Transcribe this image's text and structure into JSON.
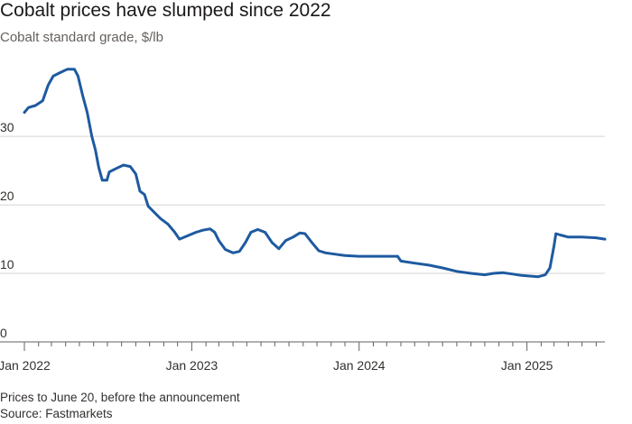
{
  "title": "Cobalt prices have slumped since 2022",
  "subtitle": "Cobalt standard grade, $/lb",
  "note": "Prices to June 20, before the announcement",
  "source": "Source: Fastmarkets",
  "colors": {
    "line": "#1e5aa0",
    "grid": "#d7d3cf",
    "axis": "#66605c",
    "text": "#33302e"
  },
  "chart_data": {
    "type": "line",
    "title": "Cobalt prices have slumped since 2022",
    "ylabel": "Cobalt standard grade, $/lb",
    "xlim": [
      "2022-01-01",
      "2025-06-20"
    ],
    "ylim": [
      0,
      42
    ],
    "yticks": [
      0,
      10,
      20,
      30
    ],
    "xticks": [
      {
        "date": "2022-01-01",
        "label": "Jan 2022"
      },
      {
        "date": "2023-01-01",
        "label": "Jan 2023"
      },
      {
        "date": "2024-01-01",
        "label": "Jan 2024"
      },
      {
        "date": "2025-01-01",
        "label": "Jan 2025"
      }
    ],
    "grid": true,
    "series": [
      {
        "points": [
          [
            "2022-01-01",
            33.5
          ],
          [
            "2022-01-10",
            34.2
          ],
          [
            "2022-01-25",
            34.5
          ],
          [
            "2022-02-10",
            35.2
          ],
          [
            "2022-02-22",
            37.5
          ],
          [
            "2022-03-05",
            38.8
          ],
          [
            "2022-03-20",
            39.3
          ],
          [
            "2022-04-05",
            39.8
          ],
          [
            "2022-04-20",
            39.8
          ],
          [
            "2022-04-28",
            38.8
          ],
          [
            "2022-05-08",
            36.0
          ],
          [
            "2022-05-18",
            33.5
          ],
          [
            "2022-05-28",
            30.0
          ],
          [
            "2022-06-05",
            28.0
          ],
          [
            "2022-06-12",
            25.5
          ],
          [
            "2022-06-20",
            23.6
          ],
          [
            "2022-06-30",
            23.6
          ],
          [
            "2022-07-05",
            24.8
          ],
          [
            "2022-07-20",
            25.3
          ],
          [
            "2022-08-05",
            25.8
          ],
          [
            "2022-08-20",
            25.6
          ],
          [
            "2022-09-01",
            24.5
          ],
          [
            "2022-09-10",
            22.0
          ],
          [
            "2022-09-20",
            21.5
          ],
          [
            "2022-09-28",
            19.8
          ],
          [
            "2022-10-10",
            19.0
          ],
          [
            "2022-10-25",
            18.0
          ],
          [
            "2022-11-10",
            17.2
          ],
          [
            "2022-11-25",
            16.0
          ],
          [
            "2022-12-05",
            15.0
          ],
          [
            "2022-12-20",
            15.4
          ],
          [
            "2023-01-10",
            16.0
          ],
          [
            "2023-01-25",
            16.3
          ],
          [
            "2023-02-10",
            16.5
          ],
          [
            "2023-02-20",
            16.0
          ],
          [
            "2023-03-01",
            14.8
          ],
          [
            "2023-03-15",
            13.5
          ],
          [
            "2023-04-01",
            13.0
          ],
          [
            "2023-04-15",
            13.2
          ],
          [
            "2023-04-28",
            14.5
          ],
          [
            "2023-05-10",
            16.0
          ],
          [
            "2023-05-25",
            16.4
          ],
          [
            "2023-06-10",
            16.0
          ],
          [
            "2023-06-25",
            14.5
          ],
          [
            "2023-07-10",
            13.6
          ],
          [
            "2023-07-25",
            14.8
          ],
          [
            "2023-08-10",
            15.3
          ],
          [
            "2023-08-25",
            15.9
          ],
          [
            "2023-09-05",
            15.8
          ],
          [
            "2023-09-20",
            14.5
          ],
          [
            "2023-10-05",
            13.3
          ],
          [
            "2023-10-20",
            13.0
          ],
          [
            "2023-11-10",
            12.8
          ],
          [
            "2023-12-01",
            12.6
          ],
          [
            "2024-01-01",
            12.5
          ],
          [
            "2024-02-01",
            12.5
          ],
          [
            "2024-03-01",
            12.5
          ],
          [
            "2024-03-25",
            12.5
          ],
          [
            "2024-04-01",
            11.8
          ],
          [
            "2024-05-01",
            11.5
          ],
          [
            "2024-06-01",
            11.2
          ],
          [
            "2024-07-01",
            10.8
          ],
          [
            "2024-08-01",
            10.3
          ],
          [
            "2024-09-01",
            10.0
          ],
          [
            "2024-10-01",
            9.8
          ],
          [
            "2024-10-20",
            10.0
          ],
          [
            "2024-11-10",
            10.1
          ],
          [
            "2024-12-01",
            9.9
          ],
          [
            "2024-12-20",
            9.7
          ],
          [
            "2025-01-10",
            9.6
          ],
          [
            "2025-01-25",
            9.5
          ],
          [
            "2025-02-10",
            9.8
          ],
          [
            "2025-02-20",
            10.8
          ],
          [
            "2025-03-01",
            14.0
          ],
          [
            "2025-03-05",
            15.8
          ],
          [
            "2025-03-15",
            15.6
          ],
          [
            "2025-04-01",
            15.3
          ],
          [
            "2025-05-01",
            15.3
          ],
          [
            "2025-06-01",
            15.2
          ],
          [
            "2025-06-20",
            15.0
          ]
        ]
      }
    ]
  }
}
